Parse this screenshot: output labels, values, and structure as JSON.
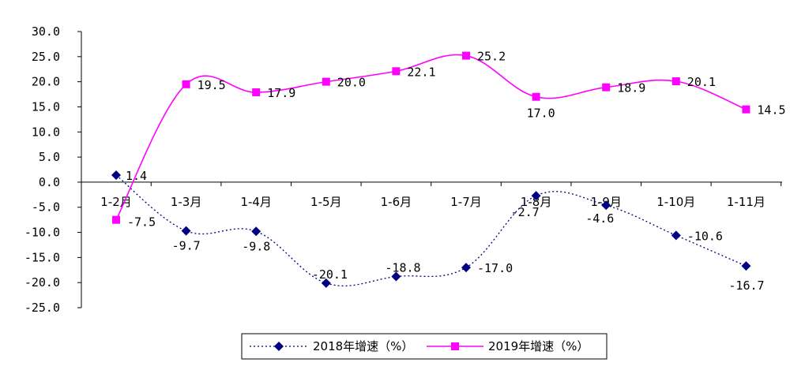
{
  "chart_data": {
    "type": "line",
    "categories": [
      "1-2月",
      "1-3月",
      "1-4月",
      "1-5月",
      "1-6月",
      "1-7月",
      "1-8月",
      "1-9月",
      "1-10月",
      "1-11月"
    ],
    "ylim": [
      -25,
      30
    ],
    "yticks": [
      "30.0",
      "25.0",
      "20.0",
      "15.0",
      "10.0",
      "5.0",
      "0.0",
      "-5.0",
      "-10.0",
      "-15.0",
      "-20.0",
      "-25.0"
    ],
    "series": [
      {
        "name": "2018年增速（%）",
        "values": [
          1.4,
          -9.7,
          -9.8,
          -20.1,
          -18.8,
          -17.0,
          -2.7,
          -4.6,
          -10.6,
          -16.7
        ],
        "labels": [
          "1.4",
          "-9.7",
          "-9.8",
          "-20.1",
          "-18.8",
          "-17.0",
          "-2.7",
          "-4.6",
          "-10.6",
          "-16.7"
        ],
        "color": "#000080",
        "marker": "diamond",
        "line_style": "dotted"
      },
      {
        "name": "2019年增速（%）",
        "values": [
          -7.5,
          19.5,
          17.9,
          20.0,
          22.1,
          25.2,
          17.0,
          18.9,
          20.1,
          14.5
        ],
        "labels": [
          "-7.5",
          "19.5",
          "17.9",
          "20.0",
          "22.1",
          "25.2",
          "17.0",
          "18.9",
          "20.1",
          "14.5"
        ],
        "color": "#ff00ff",
        "marker": "square",
        "line_style": "solid"
      }
    ],
    "legend_position": "bottom",
    "grid": false,
    "title": "",
    "xlabel": "",
    "ylabel": ""
  }
}
